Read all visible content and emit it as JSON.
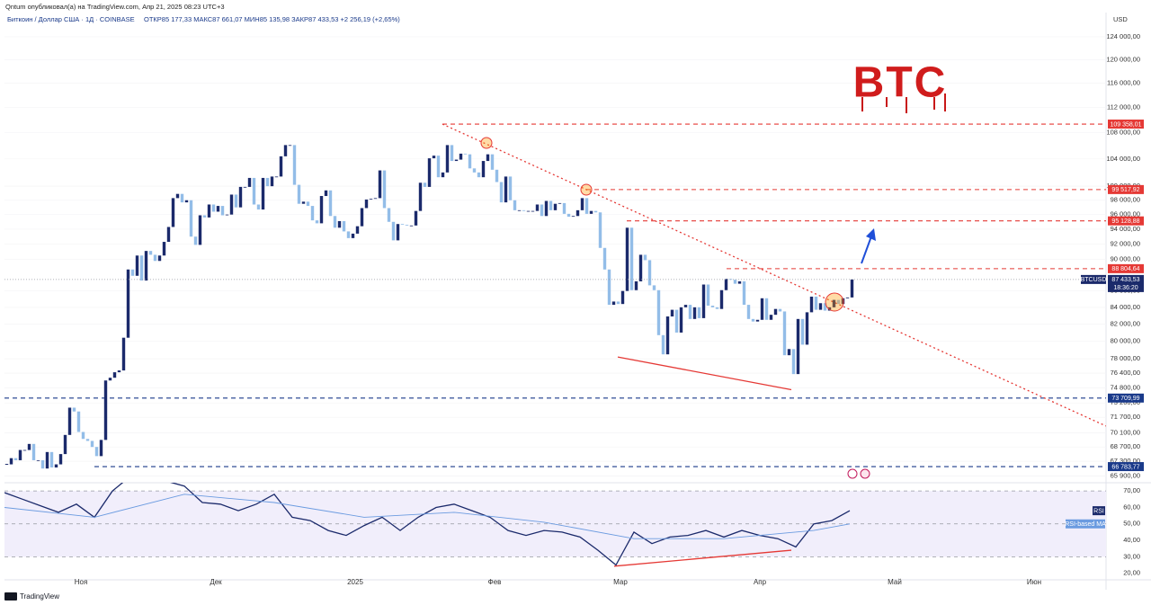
{
  "header": {
    "publisher": "Qntum опубликовал(а) на TradingView.com, Апр 21, 2025 08:23 UTC+3",
    "symbol": "Биткоин / Доллар США · 1Д · COINBASE",
    "ohlc": "ОТКР85 177,33   МАКС87 661,07   МИН85 135,98   ЗАКР87 433,53   +2 256,19 (+2,65%)",
    "currency": "USD",
    "brand": "TradingView"
  },
  "chart_data": [
    {
      "type": "candlestick",
      "title": "BTC",
      "log_scale": true,
      "grid": true,
      "xlim": [
        0,
        245
      ],
      "xticks": [
        {
          "value": 17,
          "label": "Ноя"
        },
        {
          "value": 47,
          "label": "Дек"
        },
        {
          "value": 78,
          "label": "2025"
        },
        {
          "value": 109,
          "label": "Фев"
        },
        {
          "value": 137,
          "label": "Мар"
        },
        {
          "value": 168,
          "label": "Апр"
        },
        {
          "value": 198,
          "label": "Май"
        },
        {
          "value": 229,
          "label": "Июн"
        }
      ],
      "ylim": [
        65250,
        128400
      ],
      "yticks": [
        {
          "value": 124000,
          "label": "124 000,00"
        },
        {
          "value": 120000,
          "label": "120 000,00"
        },
        {
          "value": 116000,
          "label": "116 000,00"
        },
        {
          "value": 112000,
          "label": "112 000,00"
        },
        {
          "value": 108000,
          "label": "108 000,00"
        },
        {
          "value": 104000,
          "label": "104 000,00"
        },
        {
          "value": 100000,
          "label": "100 000,00"
        },
        {
          "value": 98000,
          "label": "98 000,00"
        },
        {
          "value": 96000,
          "label": "96 000,00"
        },
        {
          "value": 94000,
          "label": "94 000,00"
        },
        {
          "value": 92000,
          "label": "92 000,00"
        },
        {
          "value": 90000,
          "label": "90 000,00"
        },
        {
          "value": 86000,
          "label": "86 000,00"
        },
        {
          "value": 84000,
          "label": "84 000,00"
        },
        {
          "value": 82000,
          "label": "82 000,00"
        },
        {
          "value": 80000,
          "label": "80 000,00"
        },
        {
          "value": 78000,
          "label": "78 000,00"
        },
        {
          "value": 76400,
          "label": "76 400,00"
        },
        {
          "value": 74800,
          "label": "74 800,00"
        },
        {
          "value": 73200,
          "label": "73 200,00"
        },
        {
          "value": 71700,
          "label": "71 700,00"
        },
        {
          "value": 70100,
          "label": "70 100,00"
        },
        {
          "value": 68700,
          "label": "68 700,00"
        },
        {
          "value": 67300,
          "label": "67 300,00"
        },
        {
          "value": 65900,
          "label": "65 900,00"
        }
      ],
      "series": [
        {
          "name": "BTCUSD",
          "up_color": "#1b2a6b",
          "down_color": "#93bde8",
          "values": [
            67000,
            67600,
            67400,
            68400,
            68400,
            69000,
            67400,
            67400,
            66600,
            68200,
            66700,
            67000,
            68000,
            69900,
            72700,
            72300,
            70200,
            69500,
            69300,
            68700,
            67800,
            69400,
            75600,
            75900,
            76500,
            76700,
            80400,
            88700,
            87900,
            90500,
            87300,
            91100,
            90600,
            89800,
            90500,
            92300,
            94300,
            98300,
            98900,
            97700,
            98000,
            93000,
            91900,
            95900,
            95600,
            97400,
            96400,
            97200,
            95900,
            96000,
            98800,
            97000,
            99900,
            99900,
            101200,
            97400,
            96700,
            101200,
            100000,
            101400,
            101400,
            104400,
            106100,
            106100,
            100200,
            97500,
            97800,
            97200,
            95200,
            94800,
            98600,
            99400,
            95800,
            94200,
            95100,
            93700,
            92800,
            93400,
            94400,
            96900,
            98100,
            98200,
            98300,
            102300,
            96900,
            95000,
            92500,
            94700,
            94600,
            94500,
            94500,
            96500,
            100500,
            99900,
            104100,
            104500,
            101300,
            102000,
            106100,
            103700,
            103900,
            104800,
            104700,
            102600,
            102000,
            101300,
            103700,
            104700,
            102400,
            100600,
            97700,
            101400,
            98000,
            96600,
            96600,
            96500,
            96500,
            96500,
            97400,
            95800,
            97900,
            96600,
            97500,
            97600,
            96100,
            95700,
            95800,
            96600,
            98300,
            96100,
            96500,
            96300,
            91500,
            88700,
            84300,
            84700,
            84400,
            86000,
            94200,
            86100,
            87200,
            90600,
            89900,
            86700,
            86100,
            80700,
            78500,
            82900,
            83700,
            81000,
            84000,
            84300,
            82600,
            84000,
            82700,
            86800,
            84200,
            84000,
            83800,
            86100,
            87500,
            87400,
            86900,
            87200,
            84300,
            82600,
            82300,
            82500,
            85100,
            82500,
            83100,
            83800,
            83500,
            78400,
            79100,
            76300,
            82600,
            79600,
            83400,
            85300,
            83700,
            84500,
            83600,
            84000,
            84900,
            84400,
            85100,
            85200,
            87433.53
          ]
        }
      ],
      "last_price": {
        "value": 87433.53,
        "label": "87 433,53"
      },
      "countdown": "18:36:20",
      "last_color": "#1b2a6b",
      "levels": [
        {
          "value": 109358.01,
          "label": "109 358,01",
          "color": "#e53935",
          "from": 97.4
        },
        {
          "value": 99517.92,
          "label": "99 517,92",
          "color": "#e53935",
          "from": 129.4
        },
        {
          "value": 95128.88,
          "label": "95 128,88",
          "color": "#e53935",
          "from": 138.4
        },
        {
          "value": 88804.64,
          "label": "88 804,64",
          "color": "#e53935",
          "from": 160.6
        },
        {
          "value": 73709.99,
          "label": "73 709,99",
          "color": "#1a3a8a",
          "from": 0
        },
        {
          "value": 66783.77,
          "label": "66 783,77",
          "color": "#1a3a8a",
          "from": 20
        }
      ],
      "trendlines": [
        {
          "points": [
            [
              97.4,
              109358.01
            ],
            [
              245,
              70800
            ]
          ],
          "color": "#e53935",
          "style": "dotted"
        },
        {
          "points": [
            [
              136.4,
              78200
            ],
            [
              175,
              74600
            ]
          ],
          "color": "#e53935",
          "style": "solid"
        }
      ]
    },
    {
      "type": "line",
      "xlim": [
        0,
        245
      ],
      "ylim": [
        16,
        75
      ],
      "yticks": [
        {
          "value": 70,
          "label": "70,00"
        },
        {
          "value": 60,
          "label": "60,00"
        },
        {
          "value": 50,
          "label": "50,00"
        },
        {
          "value": 40,
          "label": "40,00"
        },
        {
          "value": 30,
          "label": "30,00"
        },
        {
          "value": 20,
          "label": "20,00"
        }
      ],
      "hlines": [
        70,
        50,
        30
      ],
      "band_color": "#f1eefb",
      "series": [
        {
          "name": "RSI",
          "color": "#1b2a6b",
          "x": [
            0,
            4,
            8,
            12,
            16,
            20,
            24,
            28,
            32,
            36,
            40,
            44,
            48,
            52,
            56,
            60,
            64,
            68,
            72,
            76,
            80,
            84,
            88,
            92,
            96,
            100,
            104,
            108,
            112,
            116,
            120,
            124,
            128,
            132,
            136,
            140,
            144,
            148,
            152,
            156,
            160,
            164,
            168,
            172,
            176,
            180,
            184,
            188
          ],
          "values": [
            69,
            65,
            61,
            57,
            62,
            54,
            70,
            79,
            80,
            76,
            73,
            63,
            62,
            58,
            62,
            68,
            54,
            52,
            46,
            43,
            49,
            54,
            46,
            54,
            60,
            62,
            58,
            54,
            46,
            43,
            46,
            45,
            42,
            34,
            25,
            45,
            38,
            42,
            43,
            46,
            42,
            46,
            43,
            41,
            36,
            50,
            52,
            58
          ]
        },
        {
          "name": "RSI-based MA",
          "color": "#6b9be0",
          "x": [
            0,
            20,
            40,
            60,
            80,
            100,
            120,
            140,
            160,
            180,
            188
          ],
          "values": [
            60,
            54,
            68,
            63,
            54,
            57,
            51,
            41,
            41,
            46,
            50
          ]
        }
      ],
      "trendlines": [
        {
          "points": [
            [
              135.6,
              24.3
            ],
            [
              175,
              34
            ]
          ],
          "color": "#e53935",
          "style": "solid"
        }
      ]
    }
  ]
}
